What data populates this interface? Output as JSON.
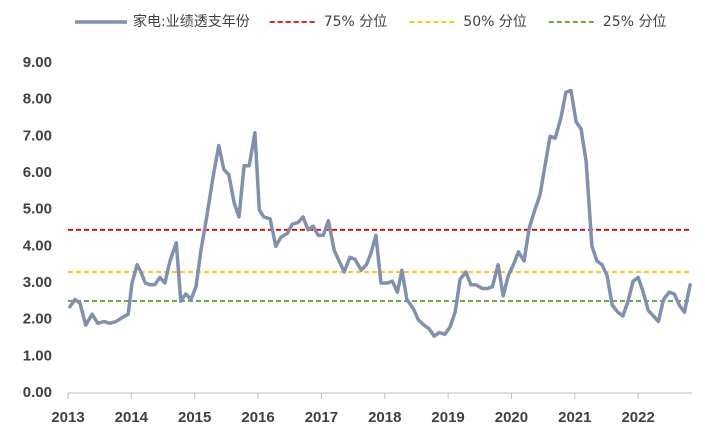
{
  "chart_data": {
    "type": "line",
    "x": [
      2013.03,
      2013.11,
      2013.19,
      2013.28,
      2013.38,
      2013.47,
      2013.57,
      2013.66,
      2013.76,
      2013.85,
      2013.95,
      2014.01,
      2014.09,
      2014.15,
      2014.22,
      2014.29,
      2014.37,
      2014.45,
      2014.53,
      2014.61,
      2014.71,
      2014.78,
      2014.86,
      2014.94,
      2015.02,
      2015.1,
      2015.19,
      2015.29,
      2015.38,
      2015.46,
      2015.54,
      2015.62,
      2015.7,
      2015.78,
      2015.86,
      2015.95,
      2016.02,
      2016.09,
      2016.19,
      2016.28,
      2016.36,
      2016.46,
      2016.54,
      2016.63,
      2016.71,
      2016.79,
      2016.87,
      2016.95,
      2017.03,
      2017.11,
      2017.2,
      2017.28,
      2017.36,
      2017.45,
      2017.53,
      2017.63,
      2017.71,
      2017.78,
      2017.86,
      2017.94,
      2018.04,
      2018.12,
      2018.2,
      2018.27,
      2018.35,
      2018.45,
      2018.53,
      2018.62,
      2018.7,
      2018.78,
      2018.86,
      2018.95,
      2019.03,
      2019.11,
      2019.19,
      2019.28,
      2019.36,
      2019.44,
      2019.54,
      2019.62,
      2019.7,
      2019.79,
      2019.87,
      2019.95,
      2020.03,
      2020.11,
      2020.2,
      2020.28,
      2020.37,
      2020.45,
      2020.53,
      2020.61,
      2020.69,
      2020.78,
      2020.86,
      2020.94,
      2021.02,
      2021.1,
      2021.18,
      2021.27,
      2021.35,
      2021.43,
      2021.51,
      2021.59,
      2021.68,
      2021.76,
      2021.84,
      2021.92,
      2022.0,
      2022.08,
      2022.16,
      2022.24,
      2022.32,
      2022.4,
      2022.49,
      2022.57,
      2022.65,
      2022.73,
      2022.82
    ],
    "series": [
      {
        "name": "家电:业绩透支年份",
        "color": "#8190ad",
        "values": [
          2.35,
          2.55,
          2.45,
          1.85,
          2.15,
          1.9,
          1.95,
          1.9,
          1.95,
          2.05,
          2.15,
          3.0,
          3.5,
          3.3,
          3.0,
          2.95,
          2.95,
          3.15,
          3.0,
          3.6,
          4.1,
          2.5,
          2.7,
          2.55,
          2.9,
          3.9,
          4.8,
          5.9,
          6.75,
          6.1,
          5.95,
          5.2,
          4.8,
          6.2,
          6.2,
          7.1,
          5.0,
          4.8,
          4.75,
          4.0,
          4.25,
          4.35,
          4.6,
          4.65,
          4.8,
          4.45,
          4.55,
          4.3,
          4.3,
          4.7,
          3.9,
          3.6,
          3.3,
          3.7,
          3.65,
          3.35,
          3.5,
          3.8,
          4.3,
          3.0,
          3.0,
          3.05,
          2.75,
          3.35,
          2.55,
          2.3,
          2.0,
          1.85,
          1.75,
          1.55,
          1.65,
          1.6,
          1.8,
          2.2,
          3.1,
          3.3,
          2.95,
          2.95,
          2.85,
          2.85,
          2.9,
          3.5,
          2.65,
          3.2,
          3.5,
          3.85,
          3.6,
          4.5,
          5.0,
          5.4,
          6.2,
          7.0,
          6.95,
          7.5,
          8.2,
          8.25,
          7.4,
          7.2,
          6.3,
          4.0,
          3.6,
          3.5,
          3.2,
          2.4,
          2.2,
          2.1,
          2.5,
          3.05,
          3.15,
          2.75,
          2.25,
          2.1,
          1.95,
          2.55,
          2.75,
          2.7,
          2.4,
          2.2,
          2.95
        ]
      }
    ],
    "reference_lines": [
      {
        "name": "75% 分位",
        "value": 4.45,
        "color": "#e00000"
      },
      {
        "name": "50% 分位",
        "value": 3.3,
        "color": "#ffc000"
      },
      {
        "name": "25% 分位",
        "value": 2.51,
        "color": "#5a9e2f"
      }
    ],
    "xlim": [
      2013,
      2022.85
    ],
    "xticks": [
      2013,
      2014,
      2015,
      2016,
      2017,
      2018,
      2019,
      2020,
      2021,
      2022
    ],
    "ylim": [
      0,
      9
    ],
    "yticks": [
      {
        "value": 0,
        "label": "0.00"
      },
      {
        "value": 1,
        "label": "1.00"
      },
      {
        "value": 2,
        "label": "2.00"
      },
      {
        "value": 3,
        "label": "3.00"
      },
      {
        "value": 4,
        "label": "4.00"
      },
      {
        "value": 5,
        "label": "5.00"
      },
      {
        "value": 6,
        "label": "6.00"
      },
      {
        "value": 7,
        "label": "7.00"
      },
      {
        "value": 8,
        "label": "8.00"
      },
      {
        "value": 9,
        "label": "9.00"
      }
    ],
    "grid": false,
    "legend": "top"
  }
}
